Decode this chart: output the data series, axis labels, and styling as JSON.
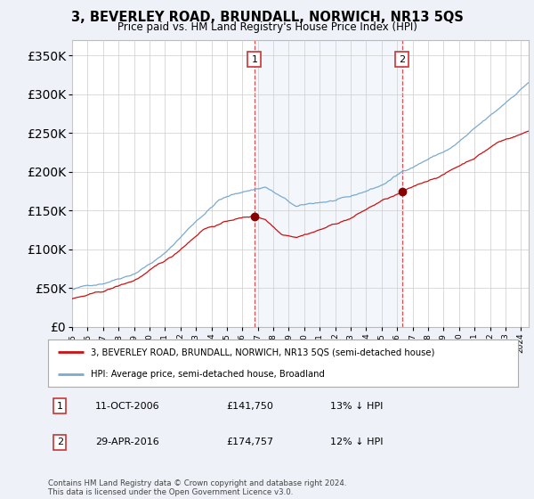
{
  "title": "3, BEVERLEY ROAD, BRUNDALL, NORWICH, NR13 5QS",
  "subtitle": "Price paid vs. HM Land Registry's House Price Index (HPI)",
  "property_label": "3, BEVERLEY ROAD, BRUNDALL, NORWICH, NR13 5QS (semi-detached house)",
  "hpi_label": "HPI: Average price, semi-detached house, Broadland",
  "annotation1_date": "11-OCT-2006",
  "annotation1_price": "£141,750",
  "annotation1_pct": "13% ↓ HPI",
  "annotation1_year": 2006.78,
  "annotation1_value": 141750,
  "annotation2_date": "29-APR-2016",
  "annotation2_price": "£174,757",
  "annotation2_pct": "12% ↓ HPI",
  "annotation2_year": 2016.33,
  "annotation2_value": 174757,
  "ylim": [
    0,
    370000
  ],
  "xlim_start": 1995,
  "xlim_end": 2024.5,
  "background_color": "#eef2f8",
  "plot_bg_color": "#ffffff",
  "property_color": "#cc1111",
  "hpi_color": "#7aaad0",
  "shade_color": "#ddeaf8",
  "grid_color": "#cccccc",
  "footnote": "Contains HM Land Registry data © Crown copyright and database right 2024.\nThis data is licensed under the Open Government Licence v3.0."
}
